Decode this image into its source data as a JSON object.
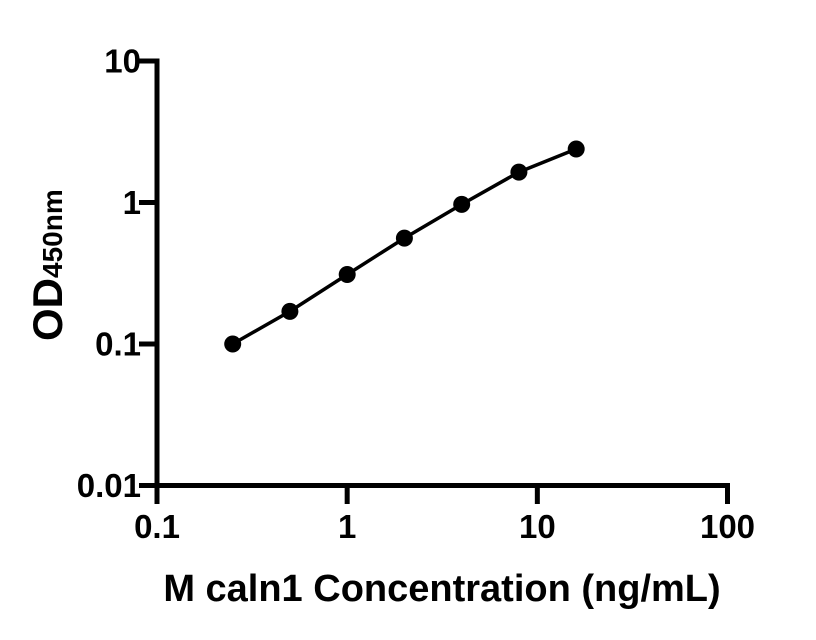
{
  "figure": {
    "background_color": "#ffffff",
    "foreground_color": "#000000"
  },
  "chart_data": {
    "type": "line",
    "title": "",
    "xlabel": "M caln1 Concentration (ng/mL)",
    "ylabel": "OD",
    "ylabel_subscript": "450nm",
    "xscale": "log",
    "yscale": "log",
    "xlim": [
      0.1,
      100
    ],
    "ylim": [
      0.01,
      10
    ],
    "x_tick_labels": [
      "0.1",
      "1",
      "10",
      "100"
    ],
    "y_tick_labels": [
      "10",
      "1",
      "0.1",
      "0.01"
    ],
    "grid": false,
    "legend": false,
    "series": [
      {
        "marker": "filled-circle",
        "color": "#000000",
        "x": [
          0.25,
          0.5,
          1,
          2,
          4,
          8,
          16
        ],
        "y": [
          0.1,
          0.17,
          0.31,
          0.56,
          0.97,
          1.64,
          2.39
        ]
      }
    ]
  }
}
